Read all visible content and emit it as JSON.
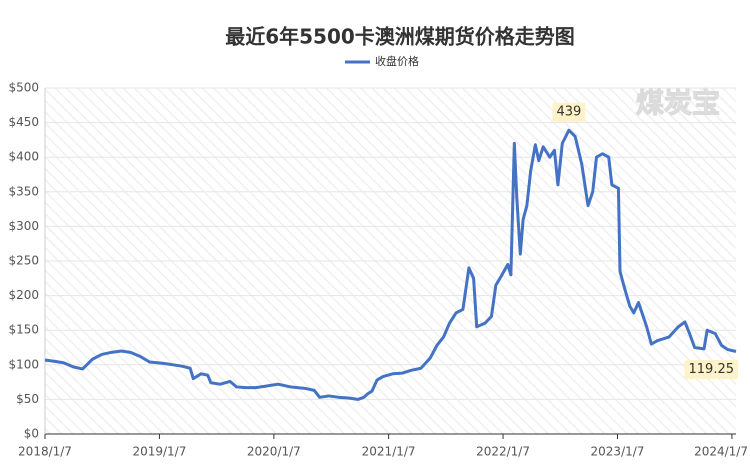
{
  "chart_data": {
    "type": "line",
    "title": "最近6年5500卡澳洲煤期货价格走势图",
    "watermark": "煤炭宝",
    "x": [
      "2018/1/7",
      "2018/2/7",
      "2018/3/7",
      "2018/4/7",
      "2018/5/7",
      "2018/6/7",
      "2018/7/7",
      "2018/8/7",
      "2018/9/7",
      "2018/10/7",
      "2018/11/7",
      "2018/12/7",
      "2019/1/20",
      "2019/2/20",
      "2019/3/20",
      "2019/4/15",
      "2019/4/25",
      "2019/5/20",
      "2019/6/10",
      "2019/6/20",
      "2019/7/20",
      "2019/8/20",
      "2019/9/10",
      "2019/10/10",
      "2019/11/10",
      "2019/12/10",
      "2020/1/20",
      "2020/3/1",
      "2020/4/15",
      "2020/5/15",
      "2020/6/1",
      "2020/7/1",
      "2020/8/1",
      "2020/9/1",
      "2020/10/1",
      "2020/10/20",
      "2020/11/1",
      "2020/11/15",
      "2020/12/1",
      "2020/12/20",
      "2021/1/20",
      "2021/2/20",
      "2021/3/20",
      "2021/4/20",
      "2021/5/20",
      "2021/6/10",
      "2021/7/1",
      "2021/7/20",
      "2021/8/10",
      "2021/9/1",
      "2021/9/20",
      "2021/10/5",
      "2021/10/15",
      "2021/11/10",
      "2021/12/1",
      "2021/12/15",
      "2022/1/1",
      "2022/1/22",
      "2022/2/1",
      "2022/2/12",
      "2022/2/20",
      "2022/3/3",
      "2022/3/12",
      "2022/3/24",
      "2022/4/5",
      "2022/4/20",
      "2022/5/1",
      "2022/5/15",
      "2022/6/5",
      "2022/6/20",
      "2022/7/1",
      "2022/7/15",
      "2022/8/5",
      "2022/8/25",
      "2022/9/15",
      "2022/10/5",
      "2022/10/20",
      "2022/11/1",
      "2022/11/20",
      "2022/12/10",
      "2022/12/20",
      "2023/1/10",
      "2023/1/15",
      "2023/1/30",
      "2023/2/15",
      "2023/2/28",
      "2023/3/15",
      "2023/4/10",
      "2023/4/25",
      "2023/5/15",
      "2023/6/20",
      "2023/7/20",
      "2023/8/10",
      "2023/8/25",
      "2023/9/10",
      "2023/10/10",
      "2023/10/20",
      "2023/11/15",
      "2023/12/5",
      "2023/12/25",
      "2024/1/20"
    ],
    "series": [
      {
        "name": "收盘价格",
        "color": "#4472c4",
        "values": [
          107,
          105,
          103,
          97,
          94,
          108,
          115,
          118,
          120,
          118,
          112,
          104,
          102,
          100,
          98,
          95,
          80,
          87,
          85,
          74,
          72,
          76,
          68,
          67,
          67,
          69,
          72,
          68,
          66,
          63,
          53,
          55,
          53,
          52,
          50,
          53,
          58,
          62,
          78,
          83,
          87,
          88,
          92,
          95,
          110,
          128,
          140,
          160,
          175,
          180,
          240,
          225,
          155,
          160,
          170,
          215,
          228,
          245,
          230,
          420,
          340,
          260,
          310,
          330,
          380,
          418,
          395,
          415,
          400,
          410,
          360,
          420,
          439,
          430,
          390,
          330,
          350,
          400,
          405,
          400,
          360,
          355,
          235,
          210,
          185,
          175,
          190,
          155,
          130,
          135,
          140,
          155,
          162,
          145,
          125,
          123,
          150,
          145,
          128,
          122,
          119.25
        ]
      }
    ],
    "xlim": [
      "2018/1/7",
      "2024/1/20"
    ],
    "xticks": [
      "2018/1/7",
      "2019/1/7",
      "2020/1/7",
      "2021/1/7",
      "2022/1/7",
      "2023/1/7",
      "2024/1/7"
    ],
    "ylim": [
      0,
      500
    ],
    "yticks": [
      {
        "value": 0,
        "label": "$0"
      },
      {
        "value": 50,
        "label": "$50"
      },
      {
        "value": 100,
        "label": "$100"
      },
      {
        "value": 150,
        "label": "$150"
      },
      {
        "value": 200,
        "label": "$200"
      },
      {
        "value": 250,
        "label": "$250"
      },
      {
        "value": 300,
        "label": "$300"
      },
      {
        "value": 350,
        "label": "$350"
      },
      {
        "value": 400,
        "label": "$400"
      },
      {
        "value": 450,
        "label": "$450"
      },
      {
        "value": 500,
        "label": "$500"
      }
    ],
    "grid": true,
    "legend": "top"
  }
}
